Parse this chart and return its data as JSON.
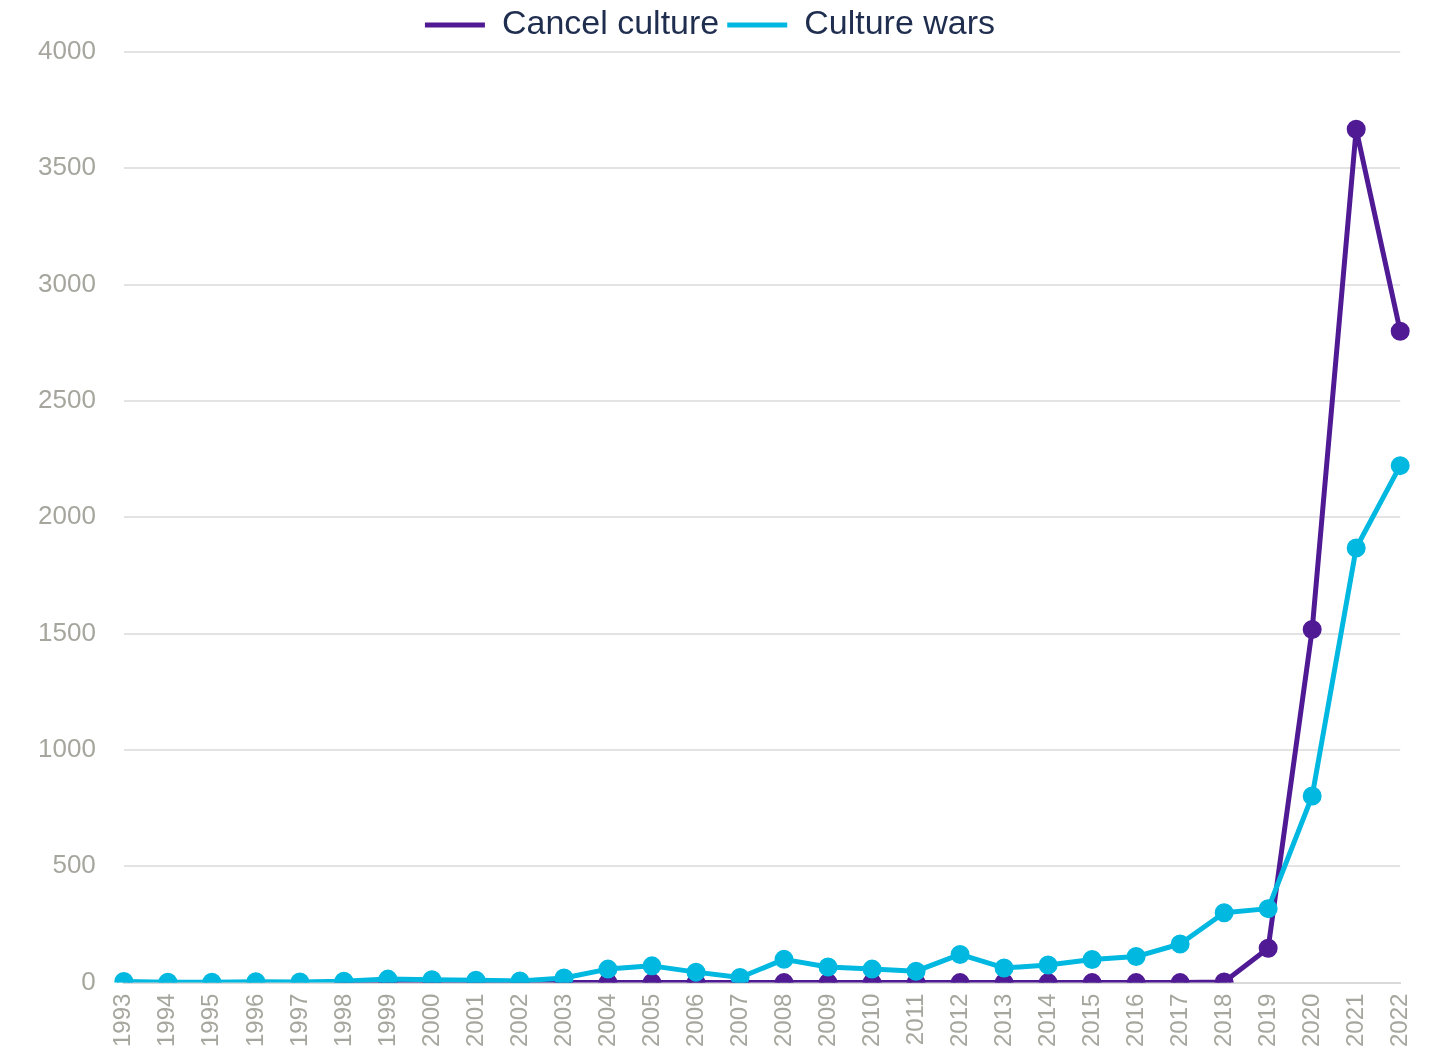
{
  "chart_data": {
    "type": "line",
    "categories": [
      "1993",
      "1994",
      "1995",
      "1996",
      "1997",
      "1998",
      "1999",
      "2000",
      "2001",
      "2002",
      "2003",
      "2004",
      "2005",
      "2006",
      "2007",
      "2008",
      "2009",
      "2010",
      "2011",
      "2012",
      "2013",
      "2014",
      "2015",
      "2016",
      "2017",
      "2018",
      "2019",
      "2020",
      "2021",
      "2022"
    ],
    "series": [
      {
        "name": "Cancel culture",
        "color": "#4f1a94",
        "values": [
          null,
          null,
          null,
          null,
          null,
          0,
          0,
          0,
          0,
          0,
          0,
          0,
          0,
          0,
          0,
          0,
          0,
          0,
          0,
          0,
          0,
          0,
          0,
          0,
          0,
          3,
          148,
          1518,
          3668,
          2800
        ]
      },
      {
        "name": "Culture wars",
        "color": "#00b8e0",
        "values": [
          5,
          2,
          2,
          4,
          3,
          6,
          15,
          12,
          10,
          7,
          20,
          58,
          72,
          45,
          22,
          100,
          67,
          58,
          49,
          121,
          63,
          76,
          99,
          112,
          166,
          300,
          318,
          802,
          1868,
          2222
        ]
      }
    ],
    "ylim": [
      0,
      4000
    ],
    "yticks": [
      0,
      500,
      1000,
      1500,
      2000,
      2500,
      3000,
      3500,
      4000
    ],
    "grid": "y",
    "legend": "top",
    "marker": "circle",
    "line_style": "solid"
  }
}
